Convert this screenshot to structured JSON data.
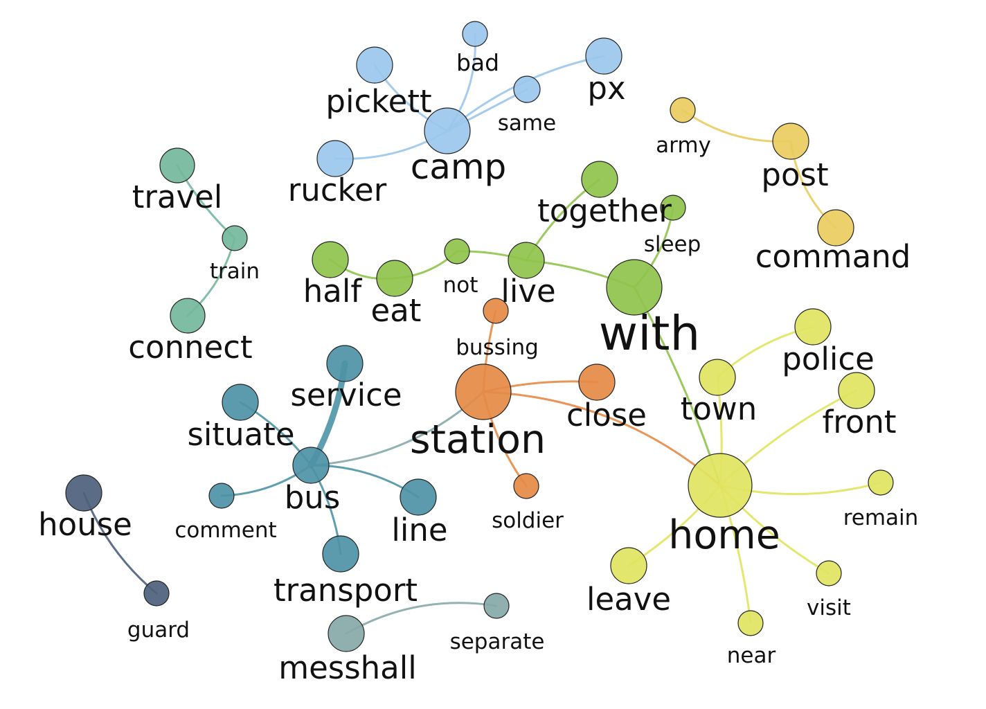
{
  "groups": {
    "camp": "#9bc7eb",
    "post": "#e9cc60",
    "travel": "#74b89c",
    "with": "#8fc34c",
    "station": "#e58a45",
    "bus": "#4e93a6",
    "house": "#4d5f7c",
    "messhall": "#86a9a8",
    "home": "#e1e45f"
  },
  "nodes": [
    {
      "id": "camp",
      "label": "camp",
      "group": "camp",
      "size": "lg"
    },
    {
      "id": "pickett",
      "label": "pickett",
      "group": "camp",
      "size": "md"
    },
    {
      "id": "bad",
      "label": "bad",
      "group": "camp",
      "size": "sm"
    },
    {
      "id": "px",
      "label": "px",
      "group": "camp",
      "size": "md"
    },
    {
      "id": "same",
      "label": "same",
      "group": "camp",
      "size": "sm"
    },
    {
      "id": "rucker",
      "label": "rucker",
      "group": "camp",
      "size": "md"
    },
    {
      "id": "army",
      "label": "army",
      "group": "post",
      "size": "sm"
    },
    {
      "id": "post",
      "label": "post",
      "group": "post",
      "size": "md"
    },
    {
      "id": "command",
      "label": "command",
      "group": "post",
      "size": "md"
    },
    {
      "id": "travel",
      "label": "travel",
      "group": "travel",
      "size": "md"
    },
    {
      "id": "train",
      "label": "train",
      "group": "travel",
      "size": "sm"
    },
    {
      "id": "connect",
      "label": "connect",
      "group": "travel",
      "size": "md"
    },
    {
      "id": "together",
      "label": "together",
      "group": "with",
      "size": "md"
    },
    {
      "id": "sleep",
      "label": "sleep",
      "group": "with",
      "size": "sm"
    },
    {
      "id": "half",
      "label": "half",
      "group": "with",
      "size": "md"
    },
    {
      "id": "eat",
      "label": "eat",
      "group": "with",
      "size": "md"
    },
    {
      "id": "not",
      "label": "not",
      "group": "with",
      "size": "sm"
    },
    {
      "id": "live",
      "label": "live",
      "group": "with",
      "size": "md"
    },
    {
      "id": "with",
      "label": "with",
      "group": "with",
      "size": "xl"
    },
    {
      "id": "bussing",
      "label": "bussing",
      "group": "station",
      "size": "sm"
    },
    {
      "id": "station",
      "label": "station",
      "group": "station",
      "size": "lg"
    },
    {
      "id": "close",
      "label": "close",
      "group": "station",
      "size": "md"
    },
    {
      "id": "soldier",
      "label": "soldier",
      "group": "station",
      "size": "sm"
    },
    {
      "id": "service",
      "label": "service",
      "group": "bus",
      "size": "md"
    },
    {
      "id": "situate",
      "label": "situate",
      "group": "bus",
      "size": "md"
    },
    {
      "id": "bus",
      "label": "bus",
      "group": "bus",
      "size": "md"
    },
    {
      "id": "comment",
      "label": "comment",
      "group": "bus",
      "size": "sm"
    },
    {
      "id": "line",
      "label": "line",
      "group": "bus",
      "size": "md"
    },
    {
      "id": "transport",
      "label": "transport",
      "group": "bus",
      "size": "md"
    },
    {
      "id": "house",
      "label": "house",
      "group": "house",
      "size": "md"
    },
    {
      "id": "guard",
      "label": "guard",
      "group": "house",
      "size": "sm"
    },
    {
      "id": "messhall",
      "label": "messhall",
      "group": "messhall",
      "size": "md"
    },
    {
      "id": "separate",
      "label": "separate",
      "group": "messhall",
      "size": "sm"
    },
    {
      "id": "town",
      "label": "town",
      "group": "home",
      "size": "md"
    },
    {
      "id": "police",
      "label": "police",
      "group": "home",
      "size": "md"
    },
    {
      "id": "front",
      "label": "front",
      "group": "home",
      "size": "md"
    },
    {
      "id": "home",
      "label": "home",
      "group": "home",
      "size": "xl"
    },
    {
      "id": "remain",
      "label": "remain",
      "group": "home",
      "size": "sm"
    },
    {
      "id": "leave",
      "label": "leave",
      "group": "home",
      "size": "md"
    },
    {
      "id": "visit",
      "label": "visit",
      "group": "home",
      "size": "sm"
    },
    {
      "id": "near",
      "label": "near",
      "group": "home",
      "size": "sm"
    }
  ],
  "edges": [
    {
      "source": "camp",
      "target": "pickett",
      "group": "camp"
    },
    {
      "source": "camp",
      "target": "bad",
      "group": "camp"
    },
    {
      "source": "camp",
      "target": "px",
      "group": "camp"
    },
    {
      "source": "camp",
      "target": "same",
      "group": "camp"
    },
    {
      "source": "camp",
      "target": "rucker",
      "group": "camp"
    },
    {
      "source": "army",
      "target": "post",
      "group": "post"
    },
    {
      "source": "post",
      "target": "command",
      "group": "post"
    },
    {
      "source": "travel",
      "target": "train",
      "group": "travel"
    },
    {
      "source": "train",
      "target": "connect",
      "group": "travel"
    },
    {
      "source": "half",
      "target": "eat",
      "group": "with"
    },
    {
      "source": "eat",
      "target": "not",
      "group": "with"
    },
    {
      "source": "not",
      "target": "live",
      "group": "with"
    },
    {
      "source": "live",
      "target": "together",
      "group": "with"
    },
    {
      "source": "live",
      "target": "with",
      "group": "with"
    },
    {
      "source": "with",
      "target": "sleep",
      "group": "with"
    },
    {
      "source": "with",
      "target": "home",
      "group": "with"
    },
    {
      "source": "station",
      "target": "bussing",
      "group": "station"
    },
    {
      "source": "station",
      "target": "close",
      "group": "station"
    },
    {
      "source": "station",
      "target": "soldier",
      "group": "station"
    },
    {
      "source": "station",
      "target": "home",
      "group": "station"
    },
    {
      "source": "station",
      "target": "bus",
      "group": "messhall"
    },
    {
      "source": "bus",
      "target": "service",
      "group": "bus",
      "weight": "heavy"
    },
    {
      "source": "bus",
      "target": "situate",
      "group": "bus"
    },
    {
      "source": "bus",
      "target": "comment",
      "group": "bus"
    },
    {
      "source": "bus",
      "target": "line",
      "group": "bus"
    },
    {
      "source": "bus",
      "target": "transport",
      "group": "bus"
    },
    {
      "source": "house",
      "target": "guard",
      "group": "house"
    },
    {
      "source": "messhall",
      "target": "separate",
      "group": "messhall"
    },
    {
      "source": "home",
      "target": "town",
      "group": "home"
    },
    {
      "source": "town",
      "target": "police",
      "group": "home"
    },
    {
      "source": "home",
      "target": "front",
      "group": "home"
    },
    {
      "source": "home",
      "target": "remain",
      "group": "home"
    },
    {
      "source": "home",
      "target": "leave",
      "group": "home"
    },
    {
      "source": "home",
      "target": "visit",
      "group": "home"
    },
    {
      "source": "home",
      "target": "near",
      "group": "home"
    }
  ]
}
